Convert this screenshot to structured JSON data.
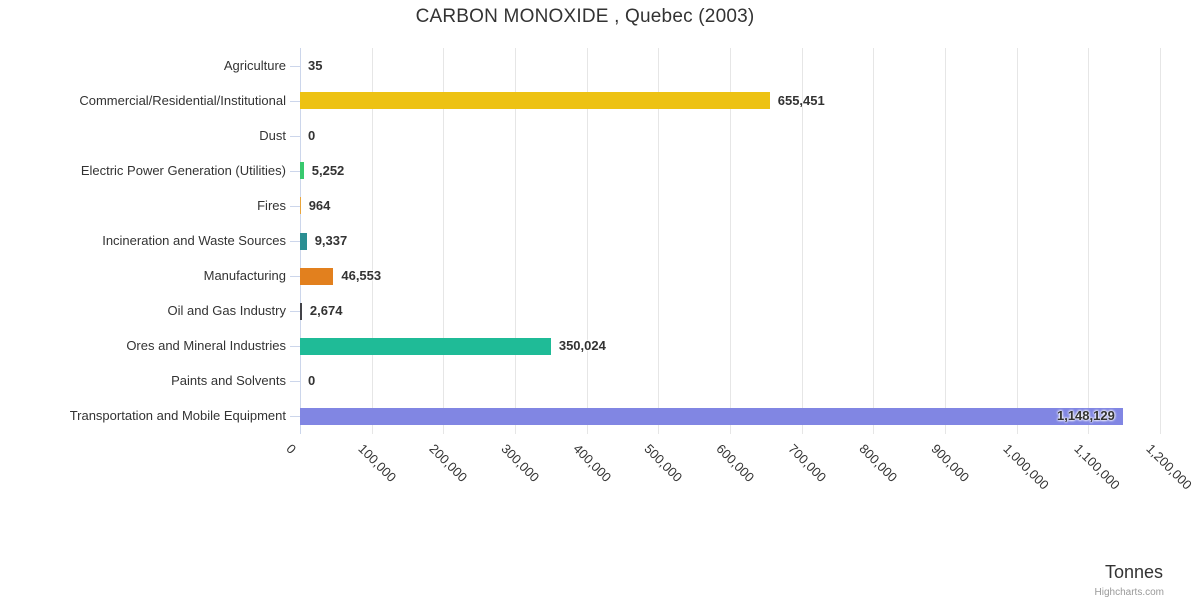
{
  "title": "CARBON MONOXIDE , Quebec (2003)",
  "credit": "Highcharts.com",
  "axis_title": "Tonnes",
  "chart_data": {
    "type": "bar",
    "orientation": "horizontal",
    "title": "CARBON MONOXIDE , Quebec (2003)",
    "xlabel": "Tonnes",
    "ylabel": "",
    "categories": [
      "Agriculture",
      "Commercial/Residential/Institutional",
      "Dust",
      "Electric Power Generation (Utilities)",
      "Fires",
      "Incineration and Waste Sources",
      "Manufacturing",
      "Oil and Gas Industry",
      "Ores and Mineral Industries",
      "Paints and Solvents",
      "Transportation and Mobile Equipment"
    ],
    "values": [
      35,
      655451,
      0,
      5252,
      964,
      9337,
      46553,
      2674,
      350024,
      0,
      1148129
    ],
    "value_labels": [
      "35",
      "655,451",
      "0",
      "5,252",
      "964",
      "9,337",
      "46,553",
      "2,674",
      "350,024",
      "0",
      "1,148,129"
    ],
    "bar_colors": [
      "",
      "#edc213",
      "",
      "#38c96e",
      "#e8a53c",
      "#2b8e92",
      "#e2801e",
      "#434348",
      "#1fbb97",
      "",
      "#8186e3"
    ],
    "xlim": [
      0,
      1200000
    ],
    "tick_interval": 100000,
    "x_tick_labels": [
      "0",
      "100,000",
      "200,000",
      "300,000",
      "400,000",
      "500,000",
      "600,000",
      "700,000",
      "800,000",
      "900,000",
      "1,000,000",
      "1,100,000",
      "1,200,000"
    ],
    "grid": true,
    "legend": "none",
    "styles": {
      "grid_color": "#e6e6e6",
      "axis_line_color": "#ccd6eb",
      "label_color": "#333333",
      "credit_color": "#999999"
    }
  }
}
